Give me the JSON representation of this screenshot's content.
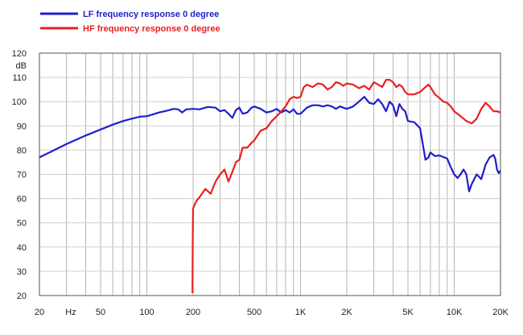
{
  "chart_data": {
    "type": "line",
    "title": "",
    "xlabel": "Hz",
    "ylabel": "dB",
    "x_scale": "log",
    "xlim": [
      20,
      20000
    ],
    "ylim": [
      20,
      120
    ],
    "grid": true,
    "legend_position": "top-left",
    "x_tick_labels": [
      {
        "value": 20,
        "label": "20"
      },
      {
        "value": 50,
        "label": "50"
      },
      {
        "value": 100,
        "label": "100"
      },
      {
        "value": 200,
        "label": "200"
      },
      {
        "value": 500,
        "label": "500"
      },
      {
        "value": 1000,
        "label": "1K"
      },
      {
        "value": 2000,
        "label": "2K"
      },
      {
        "value": 5000,
        "label": "5K"
      },
      {
        "value": 10000,
        "label": "10K"
      },
      {
        "value": 20000,
        "label": "20K"
      }
    ],
    "y_ticks": [
      20,
      30,
      40,
      50,
      60,
      70,
      80,
      90,
      100,
      110,
      120
    ],
    "series": [
      {
        "name": "LF frequency response 0 degree",
        "color": "#1f1fcc",
        "points": [
          [
            20,
            77
          ],
          [
            25,
            80
          ],
          [
            30,
            82.5
          ],
          [
            40,
            86
          ],
          [
            50,
            88.5
          ],
          [
            60,
            90.5
          ],
          [
            70,
            92
          ],
          [
            80,
            93
          ],
          [
            90,
            93.8
          ],
          [
            100,
            94
          ],
          [
            110,
            94.8
          ],
          [
            120,
            95.5
          ],
          [
            130,
            96
          ],
          [
            140,
            96.5
          ],
          [
            150,
            97
          ],
          [
            160,
            96.8
          ],
          [
            170,
            95.5
          ],
          [
            180,
            96.8
          ],
          [
            200,
            97
          ],
          [
            220,
            96.8
          ],
          [
            250,
            97.8
          ],
          [
            280,
            97.5
          ],
          [
            300,
            96
          ],
          [
            320,
            96.5
          ],
          [
            340,
            95
          ],
          [
            360,
            93.3
          ],
          [
            380,
            96.5
          ],
          [
            400,
            97.5
          ],
          [
            420,
            95
          ],
          [
            450,
            95.5
          ],
          [
            480,
            97.5
          ],
          [
            500,
            98
          ],
          [
            550,
            97
          ],
          [
            600,
            95.5
          ],
          [
            650,
            96
          ],
          [
            700,
            97
          ],
          [
            750,
            95.5
          ],
          [
            800,
            96.5
          ],
          [
            850,
            95.5
          ],
          [
            900,
            96.8
          ],
          [
            950,
            95
          ],
          [
            1000,
            95
          ],
          [
            1100,
            97.5
          ],
          [
            1200,
            98.5
          ],
          [
            1300,
            98.5
          ],
          [
            1400,
            98
          ],
          [
            1500,
            98.5
          ],
          [
            1600,
            98
          ],
          [
            1700,
            97
          ],
          [
            1800,
            98
          ],
          [
            1900,
            97.5
          ],
          [
            2000,
            97
          ],
          [
            2200,
            98
          ],
          [
            2400,
            100
          ],
          [
            2600,
            102
          ],
          [
            2800,
            99.5
          ],
          [
            3000,
            99
          ],
          [
            3200,
            101
          ],
          [
            3400,
            99
          ],
          [
            3600,
            96
          ],
          [
            3800,
            100
          ],
          [
            4000,
            98.5
          ],
          [
            4200,
            94
          ],
          [
            4400,
            99
          ],
          [
            4600,
            97
          ],
          [
            4800,
            96
          ],
          [
            5000,
            92
          ],
          [
            5500,
            91.5
          ],
          [
            6000,
            89
          ],
          [
            6500,
            76
          ],
          [
            6800,
            77
          ],
          [
            7000,
            79
          ],
          [
            7500,
            77.5
          ],
          [
            8000,
            77.8
          ],
          [
            9000,
            76.5
          ],
          [
            9500,
            73
          ],
          [
            10000,
            70
          ],
          [
            10500,
            68.5
          ],
          [
            11000,
            70
          ],
          [
            11500,
            72
          ],
          [
            12000,
            70
          ],
          [
            12500,
            63
          ],
          [
            13000,
            66
          ],
          [
            14000,
            70
          ],
          [
            15000,
            68
          ],
          [
            16000,
            74
          ],
          [
            17000,
            77
          ],
          [
            18000,
            78
          ],
          [
            18500,
            76.5
          ],
          [
            19000,
            72
          ],
          [
            19500,
            70.5
          ],
          [
            20000,
            71.5
          ]
        ]
      },
      {
        "name": "HF frequency response 0 degree",
        "color": "#e82020",
        "points": [
          [
            198,
            21
          ],
          [
            199,
            45
          ],
          [
            200,
            56
          ],
          [
            210,
            59
          ],
          [
            220,
            60.5
          ],
          [
            240,
            64
          ],
          [
            260,
            62
          ],
          [
            280,
            67
          ],
          [
            300,
            70
          ],
          [
            320,
            72
          ],
          [
            340,
            67
          ],
          [
            360,
            71
          ],
          [
            380,
            75
          ],
          [
            400,
            76
          ],
          [
            420,
            81
          ],
          [
            450,
            81
          ],
          [
            480,
            83
          ],
          [
            500,
            84
          ],
          [
            550,
            88
          ],
          [
            600,
            89
          ],
          [
            650,
            92
          ],
          [
            700,
            94
          ],
          [
            750,
            96
          ],
          [
            800,
            98
          ],
          [
            850,
            101
          ],
          [
            900,
            102
          ],
          [
            950,
            101.5
          ],
          [
            1000,
            102
          ],
          [
            1050,
            106
          ],
          [
            1100,
            107
          ],
          [
            1200,
            106
          ],
          [
            1300,
            107.5
          ],
          [
            1400,
            107
          ],
          [
            1500,
            105
          ],
          [
            1600,
            106
          ],
          [
            1700,
            108
          ],
          [
            1800,
            107.5
          ],
          [
            1900,
            106.5
          ],
          [
            2000,
            107.5
          ],
          [
            2200,
            107
          ],
          [
            2400,
            105.5
          ],
          [
            2600,
            106.5
          ],
          [
            2800,
            105
          ],
          [
            3000,
            108
          ],
          [
            3200,
            107
          ],
          [
            3400,
            106
          ],
          [
            3600,
            109
          ],
          [
            3800,
            109
          ],
          [
            4000,
            108
          ],
          [
            4200,
            106
          ],
          [
            4400,
            107
          ],
          [
            4600,
            106
          ],
          [
            4800,
            104
          ],
          [
            5000,
            103
          ],
          [
            5500,
            103
          ],
          [
            6000,
            104
          ],
          [
            6500,
            106
          ],
          [
            6800,
            107
          ],
          [
            7000,
            106
          ],
          [
            7500,
            103
          ],
          [
            8000,
            101.5
          ],
          [
            8500,
            100
          ],
          [
            9000,
            99.5
          ],
          [
            9500,
            98
          ],
          [
            10000,
            96
          ],
          [
            11000,
            94
          ],
          [
            12000,
            92
          ],
          [
            13000,
            91
          ],
          [
            14000,
            93
          ],
          [
            15000,
            97
          ],
          [
            16000,
            99.5
          ],
          [
            17000,
            98
          ],
          [
            18000,
            96
          ],
          [
            19000,
            96
          ],
          [
            20000,
            95.5
          ]
        ]
      }
    ]
  }
}
